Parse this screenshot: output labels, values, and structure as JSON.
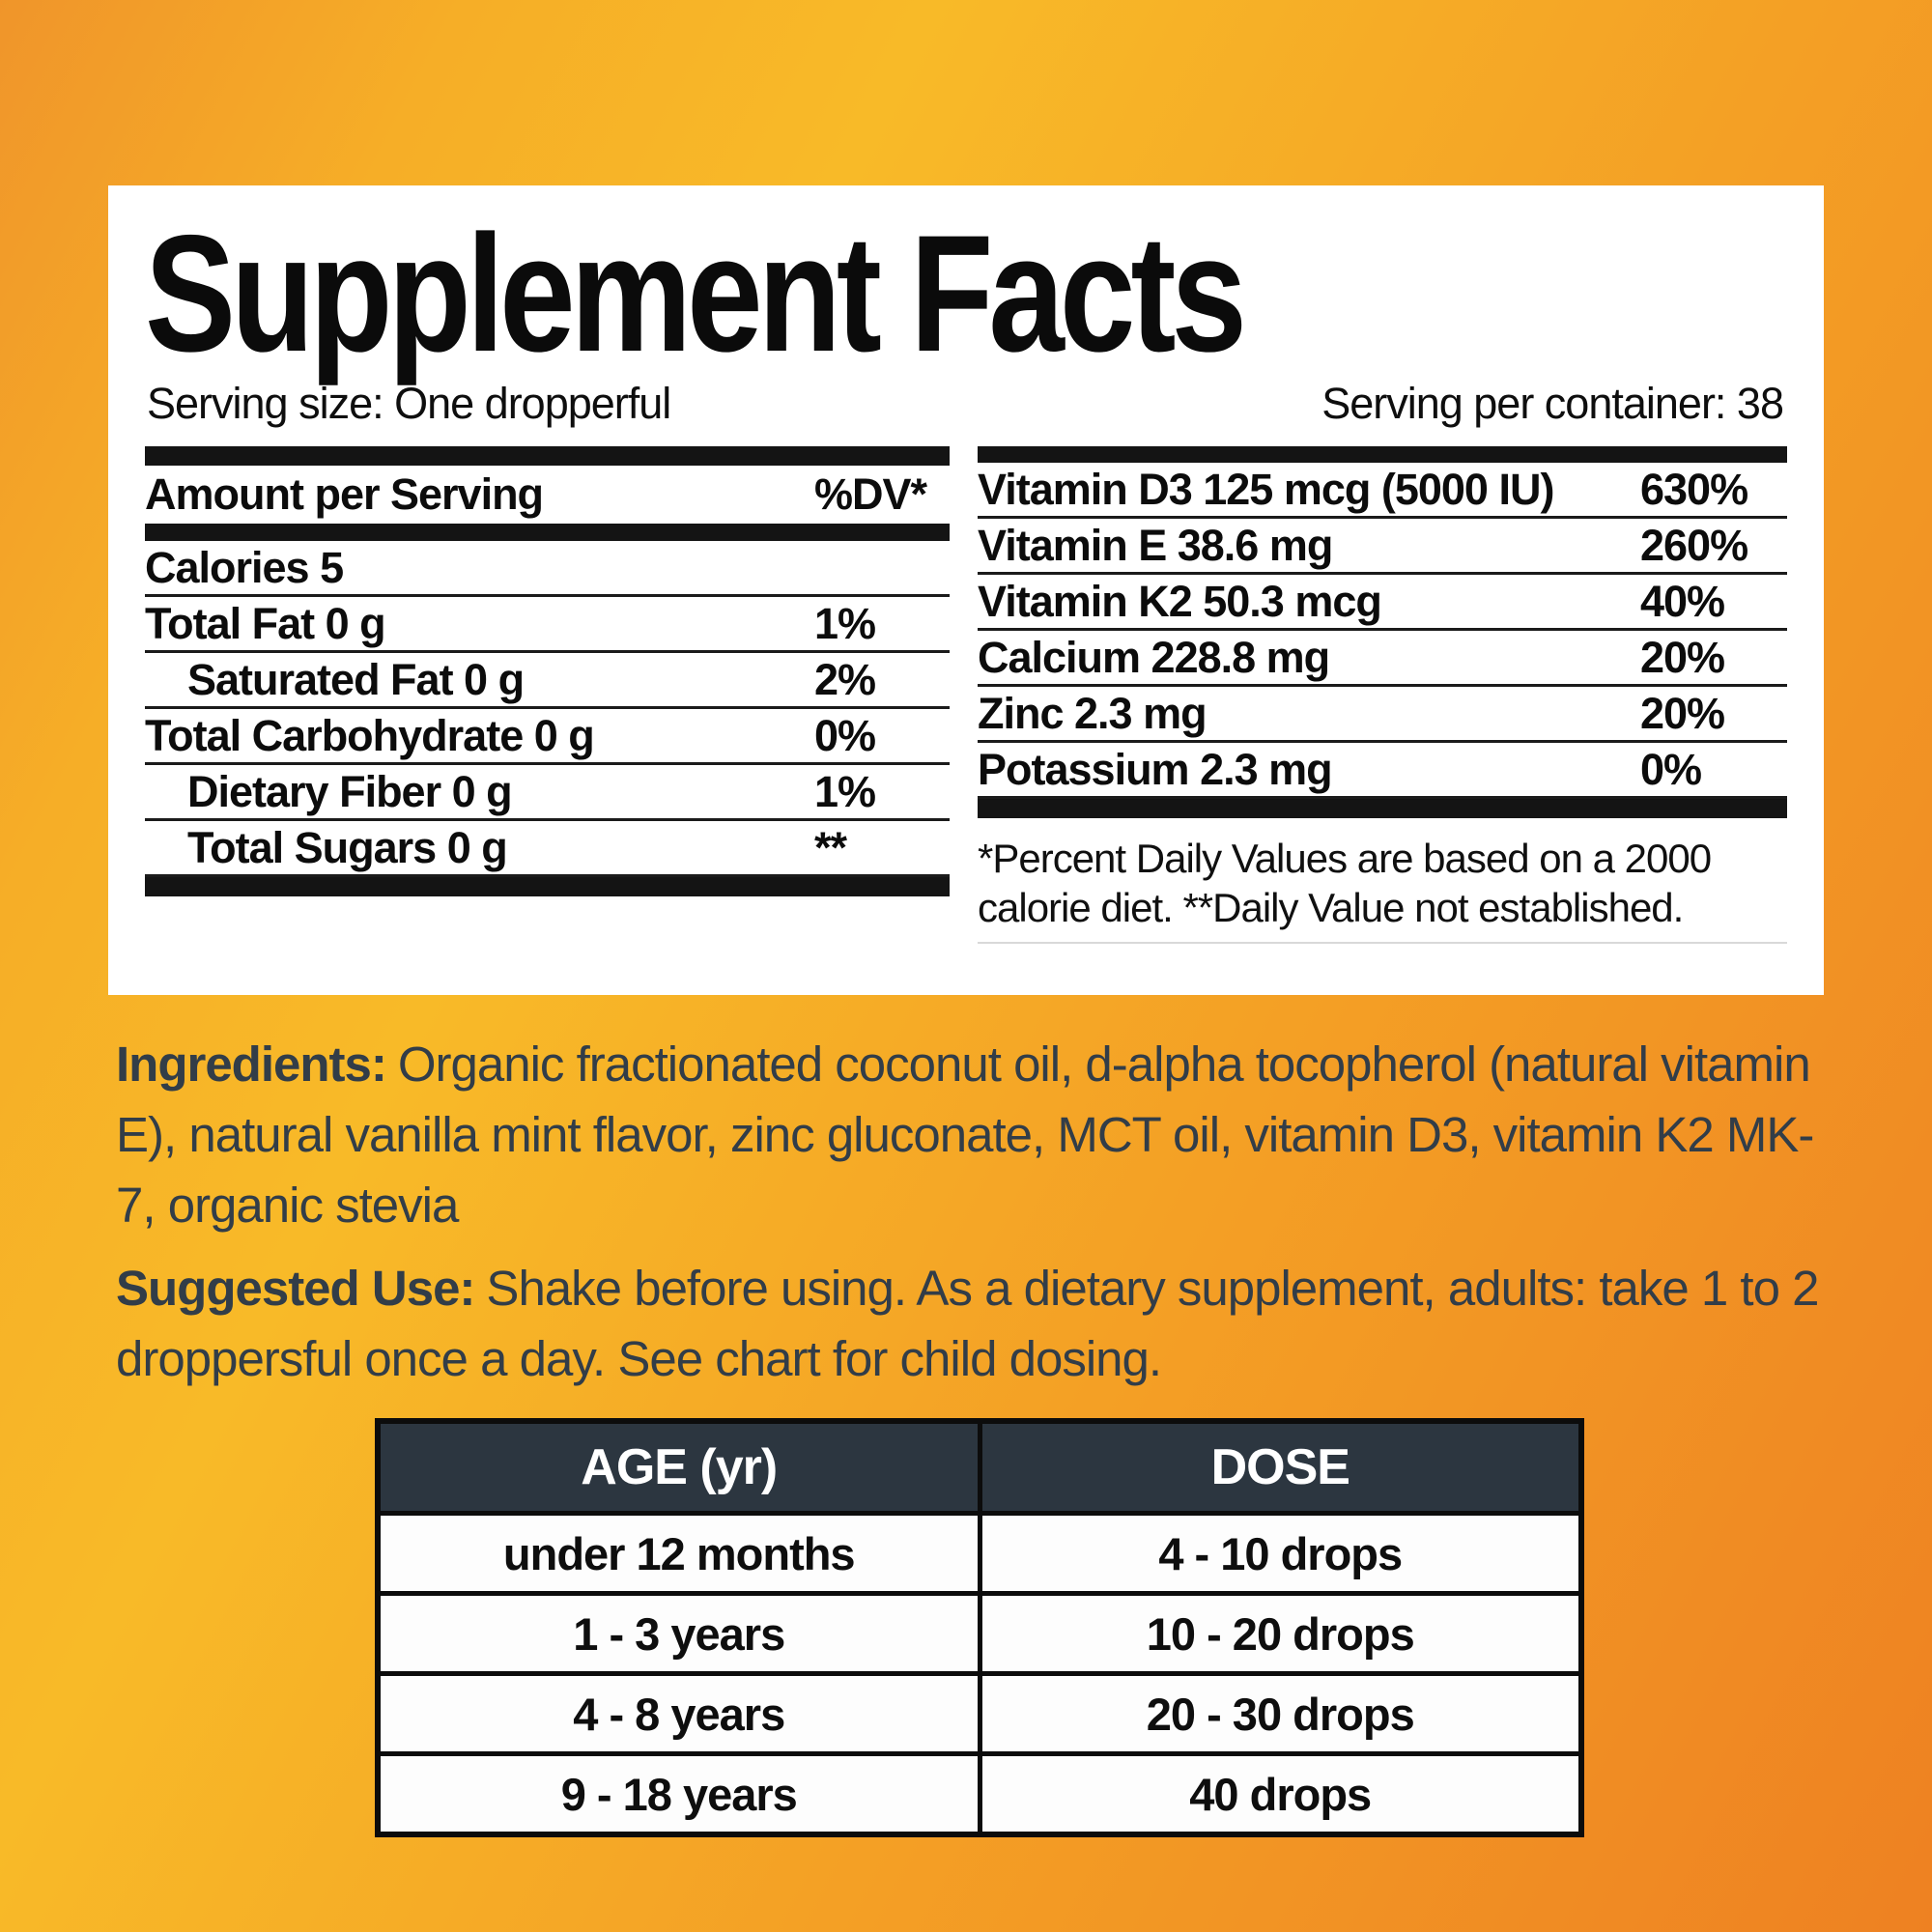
{
  "background": {
    "gradient_yellow": "#f8ba28",
    "gradient_orange": "#ee8122"
  },
  "panel": {
    "title": "Supplement Facts",
    "serving_size": "Serving size: One dropperful",
    "servings_per_container": "Serving per container: 38",
    "nutrition_table": {
      "header_label": "Amount per Serving",
      "header_dv": "%DV*",
      "rows": [
        {
          "label": "Calories 5",
          "value": ""
        },
        {
          "label": "Total Fat 0 g",
          "value": "1%"
        },
        {
          "label": "Saturated Fat 0 g",
          "value": "2%"
        },
        {
          "label": "Total Carbohydrate 0 g",
          "value": "0%"
        },
        {
          "label": "Dietary Fiber 0 g",
          "value": "1%"
        },
        {
          "label": "Total Sugars 0 g",
          "value": "**"
        }
      ]
    },
    "vitamin_table": {
      "rows": [
        {
          "label": "Vitamin D3 125 mcg (5000 IU)",
          "value": "630%"
        },
        {
          "label": "Vitamin E 38.6 mg",
          "value": "260%"
        },
        {
          "label": "Vitamin K2 50.3 mcg",
          "value": "40%"
        },
        {
          "label": "Calcium 228.8 mg",
          "value": "20%"
        },
        {
          "label": "Zinc 2.3 mg",
          "value": "20%"
        },
        {
          "label": "Potassium 2.3 mg",
          "value": "0%"
        }
      ],
      "footnote": "*Percent Daily Values are based on a 2000 calorie diet. **Daily Value not established."
    }
  },
  "ingredients": {
    "label": "Ingredients:",
    "text": "Organic fractionated coconut oil, d-alpha tocopherol (natural vitamin E), natural vanilla mint flavor, zinc gluconate, MCT oil, vitamin D3, vitamin K2 MK-7, organic stevia"
  },
  "suggested_use": {
    "label": "Suggested Use:",
    "text": "Shake before using. As a dietary supplement, adults: take 1 to 2 droppersful once a day. See chart for child dosing."
  },
  "dosing_chart": {
    "type": "table",
    "columns": [
      "AGE (yr)",
      "DOSE"
    ],
    "rows": [
      {
        "age": "under 12 months",
        "dose": "4 - 10 drops"
      },
      {
        "age": "1 - 3 years",
        "dose": "10 - 20 drops"
      },
      {
        "age": "4 - 8 years",
        "dose": "20 - 30 drops"
      },
      {
        "age": "9 - 18 years",
        "dose": "40 drops"
      }
    ],
    "header_bg": "#2c3640"
  }
}
